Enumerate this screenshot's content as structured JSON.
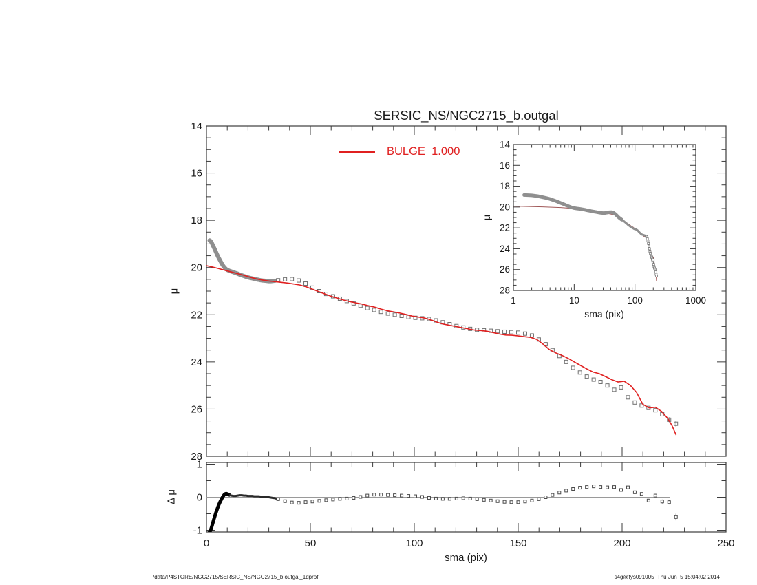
{
  "figure": {
    "title": "SERSIC_NS/NGC2715_b.outgal",
    "legend": {
      "label": "BULGE  1.000",
      "color": "#e02020"
    },
    "footer_left": "/data/P4STORE/NGC2715/SERSIC_NS/NGC2715_b.outgal_1dprof",
    "footer_right": "s4g@fys091005  Thu Jun  5 15:04:02 2014",
    "frame_color": "#3c3c3c",
    "text_color": "#1a1a1a",
    "data_gray": "#8f8f8f",
    "marker_stroke": "#6f6f6f"
  },
  "chart_data": [
    {
      "id": "main",
      "type": "scatter",
      "xlabel": "",
      "ylabel": "μ",
      "xlim": [
        0,
        250
      ],
      "ylim": [
        28,
        14
      ],
      "y_inverted": true,
      "x_major_ticks": [
        0,
        50,
        100,
        150,
        200,
        250
      ],
      "x_minor_step": 10,
      "y_major_ticks": [
        14,
        16,
        18,
        20,
        22,
        24,
        26,
        28
      ],
      "y_tick_labels": [
        "14",
        "16",
        "18",
        "20",
        "22",
        "24",
        "26",
        "28"
      ],
      "y_minor_step": 0.5,
      "grid": false,
      "series": [
        {
          "name": "profile-data",
          "marker": "open-square",
          "color": "#8f8f8f",
          "x": [
            1.5,
            2,
            2.5,
            3,
            3.5,
            4,
            4.5,
            5,
            5.5,
            6,
            6.5,
            7,
            7.5,
            8,
            8.5,
            9,
            9.5,
            10,
            11,
            12,
            13,
            14,
            15,
            16,
            17,
            18,
            19,
            20,
            21,
            22,
            23,
            24,
            25,
            26,
            27,
            28,
            29,
            30,
            31,
            32,
            33,
            34.5,
            37.8,
            41.1,
            44.4,
            47.7,
            51,
            54.3,
            57.6,
            60.9,
            64.2,
            67.5,
            70.8,
            74.1,
            77.4,
            80.7,
            84,
            87.3,
            90.6,
            93.9,
            97.2,
            100.5,
            103.8,
            107.1,
            110.4,
            113.7,
            117,
            120.3,
            123.6,
            126.9,
            130.2,
            133.5,
            136.8,
            140.1,
            143.4,
            146.7,
            150,
            153.3,
            156.6,
            159.9,
            163.2,
            166.5,
            169.8,
            173.1,
            176.4,
            179.7,
            183,
            186.3,
            189.6,
            192.9,
            196.2,
            199.5,
            202.8,
            206.1,
            209.4,
            212.7,
            216,
            219.3,
            222.6,
            225.9
          ],
          "y": [
            18.85,
            18.88,
            18.95,
            19.05,
            19.14,
            19.23,
            19.33,
            19.43,
            19.52,
            19.61,
            19.69,
            19.77,
            19.85,
            19.92,
            19.98,
            20.03,
            20.07,
            20.1,
            20.14,
            20.17,
            20.2,
            20.23,
            20.26,
            20.3,
            20.33,
            20.36,
            20.39,
            20.42,
            20.44,
            20.46,
            20.48,
            20.5,
            20.52,
            20.54,
            20.55,
            20.56,
            20.57,
            20.58,
            20.58,
            20.57,
            20.56,
            20.54,
            20.5,
            20.49,
            20.55,
            20.68,
            20.85,
            21.0,
            21.12,
            21.22,
            21.32,
            21.42,
            21.52,
            21.62,
            21.72,
            21.8,
            21.88,
            21.95,
            22.0,
            22.05,
            22.1,
            22.13,
            22.15,
            22.18,
            22.24,
            22.32,
            22.4,
            22.48,
            22.54,
            22.6,
            22.64,
            22.66,
            22.68,
            22.7,
            22.72,
            22.74,
            22.76,
            22.8,
            22.88,
            23.05,
            23.25,
            23.5,
            23.75,
            24.0,
            24.25,
            24.45,
            24.62,
            24.75,
            24.85,
            25.0,
            25.18,
            25.08,
            25.5,
            25.72,
            25.85,
            25.95,
            26.05,
            26.22,
            26.45,
            26.62
          ],
          "error_bars": [
            {
              "x": 222.6,
              "y": 26.45,
              "e": 0.1
            },
            {
              "x": 225.9,
              "y": 26.62,
              "e": 0.12
            }
          ]
        },
        {
          "name": "bulge-model",
          "type": "line",
          "color": "#e02020",
          "x": [
            0,
            3,
            6,
            9,
            12,
            15,
            18,
            21,
            24,
            27,
            30,
            33,
            36,
            39,
            42,
            45,
            48,
            51,
            54,
            57,
            60,
            63,
            66,
            69,
            72,
            75,
            78,
            81,
            84,
            87,
            90,
            93,
            96,
            99,
            102,
            105,
            108,
            111,
            114,
            117,
            120,
            123,
            126,
            129,
            132,
            135,
            138,
            141,
            144,
            147,
            150,
            153,
            156,
            159,
            162,
            165,
            168,
            171,
            174,
            177,
            180,
            183,
            186,
            189,
            192,
            195,
            198,
            201,
            204,
            207,
            210,
            213,
            216,
            219,
            222,
            224,
            226
          ],
          "y": [
            19.92,
            19.98,
            20.05,
            20.12,
            20.19,
            20.26,
            20.33,
            20.41,
            20.48,
            20.53,
            20.57,
            20.6,
            20.63,
            20.66,
            20.7,
            20.74,
            20.82,
            20.92,
            21.02,
            21.12,
            21.22,
            21.3,
            21.38,
            21.45,
            21.5,
            21.55,
            21.62,
            21.68,
            21.76,
            21.83,
            21.88,
            21.93,
            21.99,
            22.06,
            22.1,
            22.14,
            22.22,
            22.32,
            22.4,
            22.45,
            22.5,
            22.55,
            22.6,
            22.65,
            22.67,
            22.7,
            22.76,
            22.82,
            22.86,
            22.87,
            22.9,
            22.93,
            22.96,
            23.05,
            23.25,
            23.48,
            23.62,
            23.72,
            23.85,
            24.0,
            24.15,
            24.3,
            24.43,
            24.5,
            24.62,
            24.75,
            24.85,
            24.82,
            25.0,
            25.3,
            25.8,
            25.95,
            25.92,
            26.1,
            26.4,
            26.7,
            27.1
          ]
        }
      ]
    },
    {
      "id": "inset",
      "type": "scatter",
      "xscale": "log",
      "xlabel": "sma (pix)",
      "ylabel": "μ",
      "xlim": [
        1,
        1000
      ],
      "ylim": [
        28,
        14
      ],
      "y_inverted": true,
      "x_major_ticks": [
        1,
        10,
        100,
        1000
      ],
      "x_tick_labels": [
        "1",
        "10",
        "100",
        "1000"
      ],
      "y_major_ticks": [
        14,
        16,
        18,
        20,
        22,
        24,
        26,
        28
      ],
      "y_tick_labels": [
        "14",
        "16",
        "18",
        "20",
        "22",
        "24",
        "26",
        "28"
      ],
      "y_minor_step": 0.5,
      "grid": false,
      "series_source": "main"
    },
    {
      "id": "residual",
      "type": "scatter",
      "xlabel": "sma (pix)",
      "ylabel": "Δ μ",
      "xlim": [
        0,
        250
      ],
      "ylim": [
        -1,
        1
      ],
      "x_major_ticks": [
        0,
        50,
        100,
        150,
        200,
        250
      ],
      "x_tick_labels": [
        "0",
        "50",
        "100",
        "150",
        "200",
        "250"
      ],
      "x_minor_step": 10,
      "y_major_ticks": [
        1,
        0,
        -1
      ],
      "y_tick_labels": [
        "1",
        "0",
        "-1"
      ],
      "y_minor_step": 0.5,
      "zero_line": true,
      "grid": false,
      "series": [
        {
          "name": "residual-data",
          "marker": "open-square",
          "color": "#333333",
          "x": [
            1.5,
            2,
            2.5,
            3,
            3.5,
            4,
            4.5,
            5,
            5.5,
            6,
            6.5,
            7,
            7.5,
            8,
            8.5,
            9,
            9.5,
            10,
            11,
            12,
            13,
            14,
            15,
            16,
            17,
            18,
            19,
            20,
            21,
            22,
            23,
            24,
            25,
            26,
            27,
            28,
            29,
            30,
            31,
            32,
            33,
            34.5,
            37.8,
            41.1,
            44.4,
            47.7,
            51,
            54.3,
            57.6,
            60.9,
            64.2,
            67.5,
            70.8,
            74.1,
            77.4,
            80.7,
            84,
            87.3,
            90.6,
            93.9,
            97.2,
            100.5,
            103.8,
            107.1,
            110.4,
            113.7,
            117,
            120.3,
            123.6,
            126.9,
            130.2,
            133.5,
            136.8,
            140.1,
            143.4,
            146.7,
            150,
            153.3,
            156.6,
            159.9,
            163.2,
            166.5,
            169.8,
            173.1,
            176.4,
            179.7,
            183,
            186.3,
            189.6,
            192.9,
            196.2,
            199.5,
            202.8,
            206.1,
            209.4,
            212.7,
            216,
            219.3,
            222.6,
            225.9
          ],
          "y": [
            -1.05,
            -1.0,
            -0.9,
            -0.79,
            -0.68,
            -0.58,
            -0.48,
            -0.39,
            -0.3,
            -0.22,
            -0.15,
            -0.09,
            -0.03,
            0.03,
            0.07,
            0.1,
            0.11,
            0.1,
            0.07,
            0.05,
            0.04,
            0.04,
            0.05,
            0.06,
            0.06,
            0.05,
            0.05,
            0.04,
            0.04,
            0.04,
            0.03,
            0.03,
            0.03,
            0.02,
            0.02,
            0.01,
            0.01,
            0.0,
            -0.01,
            -0.02,
            -0.03,
            -0.06,
            -0.12,
            -0.16,
            -0.17,
            -0.15,
            -0.13,
            -0.11,
            -0.09,
            -0.07,
            -0.05,
            -0.04,
            -0.02,
            0.01,
            0.05,
            0.08,
            0.08,
            0.07,
            0.06,
            0.05,
            0.04,
            0.03,
            0.01,
            -0.02,
            -0.04,
            -0.05,
            -0.05,
            -0.04,
            -0.03,
            -0.04,
            -0.06,
            -0.08,
            -0.1,
            -0.12,
            -0.14,
            -0.15,
            -0.15,
            -0.13,
            -0.1,
            -0.06,
            0.0,
            0.07,
            0.14,
            0.2,
            0.25,
            0.29,
            0.31,
            0.33,
            0.31,
            0.3,
            0.31,
            0.22,
            0.3,
            0.15,
            0.1,
            -0.1,
            0.05,
            -0.13,
            -0.15,
            -0.6
          ],
          "error_bars": [
            {
              "x": 196.2,
              "y": 0.31,
              "e": 0.03
            },
            {
              "x": 199.5,
              "y": 0.22,
              "e": 0.04
            },
            {
              "x": 206.1,
              "y": 0.15,
              "e": 0.04
            },
            {
              "x": 209.4,
              "y": 0.1,
              "e": 0.04
            },
            {
              "x": 212.7,
              "y": -0.1,
              "e": 0.05
            },
            {
              "x": 216,
              "y": 0.05,
              "e": 0.05
            },
            {
              "x": 219.3,
              "y": -0.13,
              "e": 0.06
            },
            {
              "x": 222.6,
              "y": -0.15,
              "e": 0.07
            },
            {
              "x": 225.9,
              "y": -0.6,
              "e": 0.1
            }
          ]
        }
      ]
    }
  ]
}
